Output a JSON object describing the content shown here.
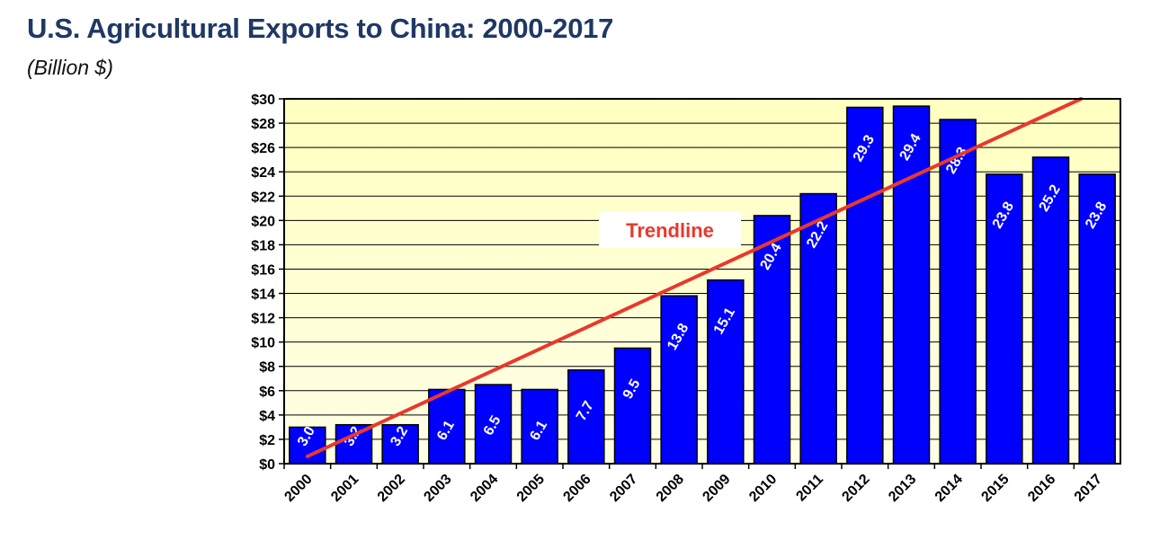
{
  "title": "U.S. Agricultural Exports to China: 2000-2017",
  "subtitle": "(Billion $)",
  "colors": {
    "title": "#1f3864",
    "bar": "#0000ff",
    "plot_bg_top": "#ffffc0",
    "plot_bg_bottom": "#ffffe6",
    "trendline": "#e8392c"
  },
  "chart_data": {
    "type": "bar",
    "categories": [
      "2000",
      "2001",
      "2002",
      "2003",
      "2004",
      "2005",
      "2006",
      "2007",
      "2008",
      "2009",
      "2010",
      "2011",
      "2012",
      "2013",
      "2014",
      "2015",
      "2016",
      "2017"
    ],
    "values": [
      3.0,
      3.2,
      3.2,
      6.1,
      6.5,
      6.1,
      7.7,
      9.5,
      13.8,
      15.1,
      20.4,
      22.2,
      29.3,
      29.4,
      28.3,
      23.8,
      25.2,
      23.8
    ],
    "data_labels": [
      "3.0",
      "3.2",
      "3.2",
      "6.1",
      "6.5",
      "6.1",
      "7.7",
      "9.5",
      "13.8",
      "15.1",
      "20.4",
      "22.2",
      "29.3",
      "29.4",
      "28.3",
      "23.8",
      "25.2",
      "23.8"
    ],
    "ylim": [
      0,
      30
    ],
    "yticks": [
      0,
      2,
      4,
      6,
      8,
      10,
      12,
      14,
      16,
      18,
      20,
      22,
      24,
      26,
      28,
      30
    ],
    "ytick_labels": [
      "$0",
      "$2",
      "$4",
      "$6",
      "$8",
      "$10",
      "$12",
      "$14",
      "$16",
      "$18",
      "$20",
      "$22",
      "$24",
      "$26",
      "$28",
      "$30"
    ],
    "grid": true,
    "trendline": {
      "label": "Trendline",
      "start": [
        2000,
        0.6
      ],
      "end": [
        2017,
        30.0
      ]
    }
  }
}
